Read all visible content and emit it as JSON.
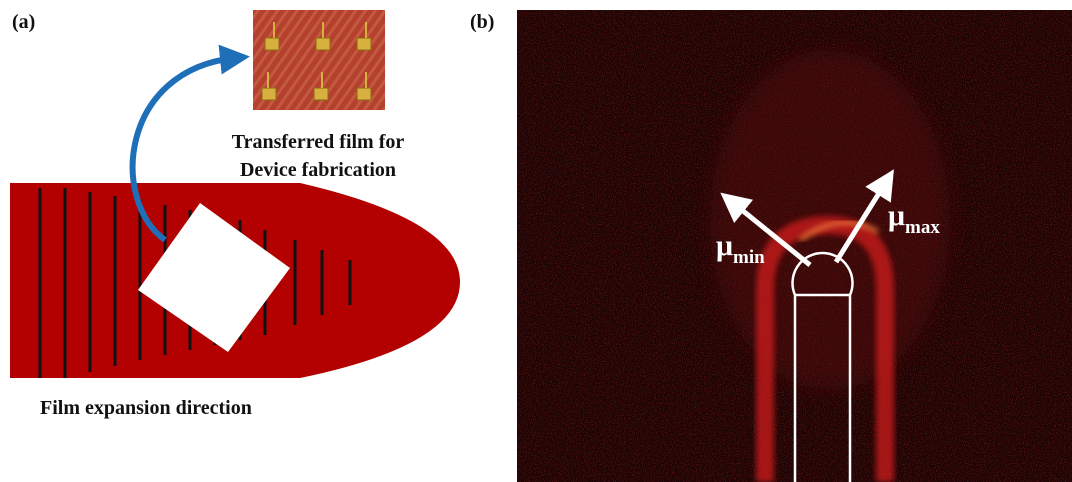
{
  "panel_a": {
    "label": "(a)",
    "inset_caption": [
      "Transferred film for",
      "Device fabrication"
    ],
    "caption": "Film expansion direction"
  },
  "panel_b": {
    "label": "(b)",
    "annotations": [
      {
        "symbol": "μ",
        "subscript": "min"
      },
      {
        "symbol": "μ",
        "subscript": "max"
      }
    ]
  }
}
